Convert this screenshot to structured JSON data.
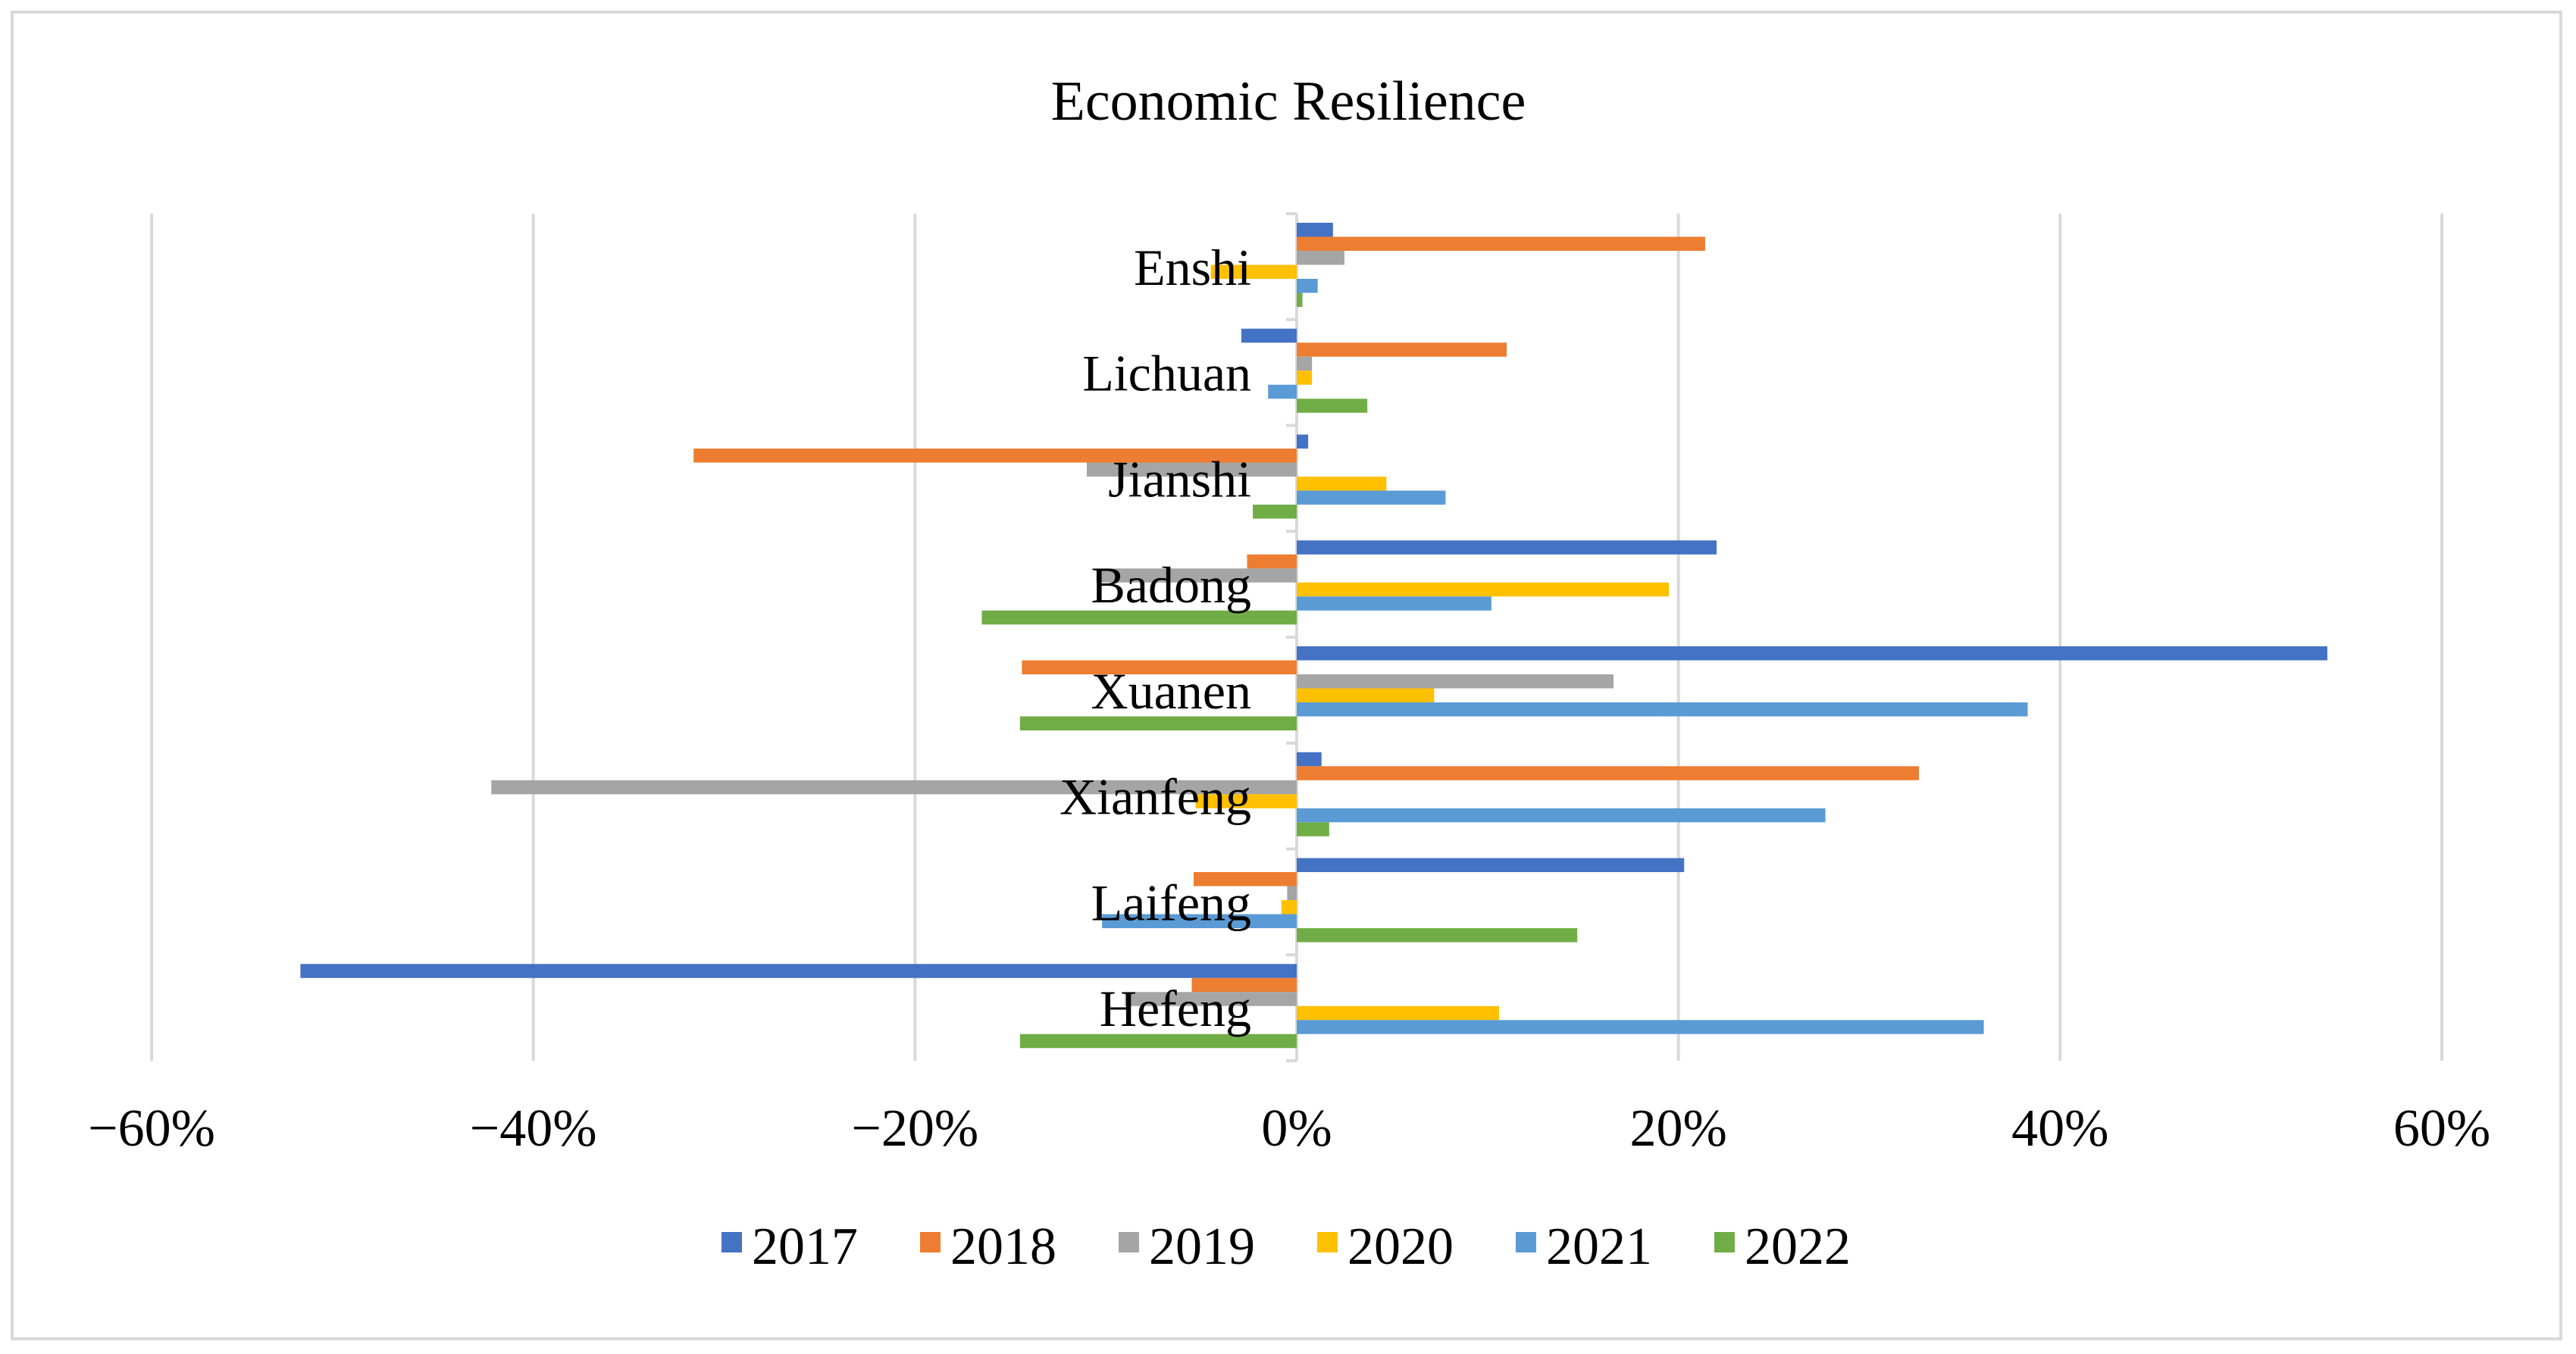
{
  "chart_data": {
    "type": "bar",
    "orientation": "horizontal",
    "title": "Economic Resilience",
    "xlabel": "",
    "ylabel": "",
    "xlim": [
      -0.6,
      0.6
    ],
    "x_ticks": [
      -0.6,
      -0.4,
      -0.2,
      0,
      0.2,
      0.4,
      0.6
    ],
    "x_tick_labels": [
      "−60%",
      "−40%",
      "−20%",
      "0%",
      "20%",
      "40%",
      "60%"
    ],
    "grid": "vertical",
    "legend_position": "bottom",
    "categories": [
      "Enshi",
      "Lichuan",
      "Jianshi",
      "Badong",
      "Xuanen",
      "Xianfeng",
      "Laifeng",
      "Hefeng"
    ],
    "series": [
      {
        "name": "2017",
        "color": "#4472C4",
        "values": [
          0.019,
          -0.029,
          0.006,
          0.22,
          0.54,
          0.013,
          0.203,
          -0.522
        ]
      },
      {
        "name": "2018",
        "color": "#ED7D31",
        "values": [
          0.214,
          0.11,
          -0.316,
          -0.026,
          -0.144,
          0.326,
          -0.054,
          -0.055
        ]
      },
      {
        "name": "2019",
        "color": "#A5A5A5",
        "values": [
          0.025,
          0.008,
          -0.11,
          -0.105,
          0.166,
          -0.422,
          -0.005,
          -0.09
        ]
      },
      {
        "name": "2020",
        "color": "#FFC000",
        "values": [
          -0.045,
          0.008,
          0.047,
          0.195,
          0.072,
          -0.053,
          -0.008,
          0.106
        ]
      },
      {
        "name": "2021",
        "color": "#5B9BD5",
        "values": [
          0.011,
          -0.015,
          0.078,
          0.102,
          0.383,
          0.277,
          -0.102,
          0.36
        ]
      },
      {
        "name": "2022",
        "color": "#70AD47",
        "values": [
          0.003,
          0.037,
          -0.023,
          -0.165,
          -0.145,
          0.017,
          0.147,
          -0.145
        ]
      }
    ]
  }
}
